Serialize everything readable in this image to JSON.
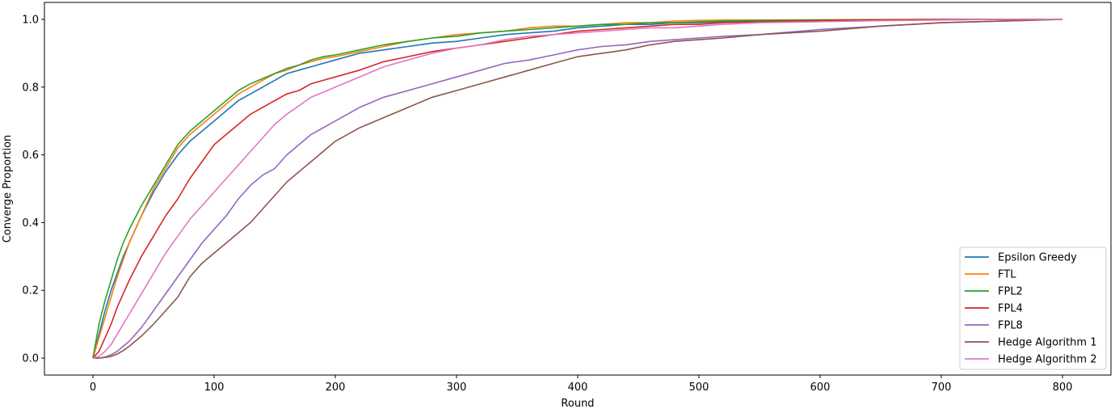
{
  "chart_data": {
    "type": "line",
    "title": "",
    "xlabel": "Round",
    "ylabel": "Converge Proportion",
    "xlim": [
      -40,
      840
    ],
    "ylim": [
      -0.05,
      1.05
    ],
    "xticks": [
      0,
      100,
      200,
      300,
      400,
      500,
      600,
      700,
      800
    ],
    "yticks": [
      0.0,
      0.2,
      0.4,
      0.6,
      0.8,
      1.0
    ],
    "xtick_labels": [
      "0",
      "100",
      "200",
      "300",
      "400",
      "500",
      "600",
      "700",
      "800"
    ],
    "ytick_labels": [
      "0.0",
      "0.2",
      "0.4",
      "0.6",
      "0.8",
      "1.0"
    ],
    "grid": false,
    "legend_position": "bottom-right",
    "series": [
      {
        "name": "Epsilon Greedy",
        "color": "#1f77b4",
        "x": [
          0,
          5,
          10,
          15,
          20,
          25,
          30,
          40,
          50,
          60,
          70,
          80,
          90,
          100,
          110,
          120,
          130,
          140,
          150,
          160,
          170,
          180,
          190,
          200,
          220,
          240,
          260,
          280,
          300,
          320,
          340,
          360,
          380,
          400,
          420,
          440,
          460,
          480,
          500,
          520,
          550,
          600,
          650,
          700,
          750,
          800
        ],
        "y": [
          0.0,
          0.07,
          0.14,
          0.2,
          0.25,
          0.3,
          0.34,
          0.42,
          0.49,
          0.55,
          0.6,
          0.64,
          0.67,
          0.7,
          0.73,
          0.76,
          0.78,
          0.8,
          0.82,
          0.84,
          0.85,
          0.86,
          0.87,
          0.88,
          0.9,
          0.91,
          0.92,
          0.93,
          0.935,
          0.945,
          0.955,
          0.96,
          0.965,
          0.975,
          0.98,
          0.985,
          0.985,
          0.99,
          0.99,
          0.993,
          0.995,
          0.997,
          0.998,
          0.999,
          1.0,
          1.0
        ]
      },
      {
        "name": "FTL",
        "color": "#ff7f0e",
        "x": [
          0,
          5,
          10,
          15,
          20,
          25,
          30,
          40,
          50,
          60,
          70,
          80,
          90,
          100,
          110,
          120,
          130,
          140,
          150,
          160,
          170,
          180,
          190,
          200,
          220,
          240,
          260,
          280,
          300,
          320,
          340,
          360,
          380,
          400,
          420,
          440,
          460,
          480,
          500,
          520,
          550,
          600,
          650,
          700,
          750,
          800
        ],
        "y": [
          0.0,
          0.06,
          0.12,
          0.18,
          0.24,
          0.29,
          0.34,
          0.42,
          0.5,
          0.56,
          0.62,
          0.66,
          0.69,
          0.72,
          0.75,
          0.78,
          0.8,
          0.82,
          0.84,
          0.85,
          0.865,
          0.875,
          0.885,
          0.89,
          0.905,
          0.92,
          0.935,
          0.945,
          0.955,
          0.96,
          0.965,
          0.975,
          0.98,
          0.98,
          0.985,
          0.99,
          0.99,
          0.995,
          0.997,
          0.998,
          0.998,
          0.999,
          1.0,
          1.0,
          1.0,
          1.0
        ]
      },
      {
        "name": "FPL2",
        "color": "#2ca02c",
        "x": [
          0,
          5,
          10,
          15,
          20,
          25,
          30,
          40,
          50,
          60,
          70,
          80,
          90,
          100,
          110,
          120,
          130,
          140,
          150,
          160,
          170,
          180,
          190,
          200,
          220,
          240,
          260,
          280,
          300,
          320,
          340,
          360,
          380,
          400,
          420,
          440,
          460,
          480,
          500,
          520,
          550,
          600,
          650,
          700,
          750,
          800
        ],
        "y": [
          0.0,
          0.1,
          0.17,
          0.23,
          0.29,
          0.34,
          0.38,
          0.45,
          0.51,
          0.57,
          0.63,
          0.67,
          0.7,
          0.73,
          0.76,
          0.79,
          0.81,
          0.825,
          0.84,
          0.855,
          0.865,
          0.88,
          0.89,
          0.895,
          0.91,
          0.925,
          0.935,
          0.945,
          0.95,
          0.96,
          0.965,
          0.97,
          0.975,
          0.98,
          0.985,
          0.985,
          0.99,
          0.99,
          0.993,
          0.995,
          0.997,
          0.998,
          0.999,
          1.0,
          1.0,
          1.0
        ]
      },
      {
        "name": "FPL4",
        "color": "#d62728",
        "x": [
          0,
          5,
          10,
          15,
          20,
          25,
          30,
          40,
          50,
          60,
          70,
          80,
          90,
          100,
          110,
          120,
          130,
          140,
          150,
          160,
          170,
          180,
          190,
          200,
          220,
          240,
          260,
          280,
          300,
          320,
          340,
          360,
          380,
          400,
          420,
          440,
          460,
          480,
          500,
          520,
          550,
          600,
          650,
          700,
          750,
          800
        ],
        "y": [
          0.0,
          0.02,
          0.06,
          0.1,
          0.15,
          0.19,
          0.23,
          0.3,
          0.36,
          0.42,
          0.47,
          0.53,
          0.58,
          0.63,
          0.66,
          0.69,
          0.72,
          0.74,
          0.76,
          0.78,
          0.79,
          0.81,
          0.82,
          0.83,
          0.85,
          0.875,
          0.89,
          0.905,
          0.915,
          0.925,
          0.935,
          0.945,
          0.955,
          0.965,
          0.97,
          0.975,
          0.98,
          0.985,
          0.985,
          0.99,
          0.993,
          0.996,
          0.998,
          1.0,
          1.0,
          1.0
        ]
      },
      {
        "name": "FPL8",
        "color": "#9467bd",
        "x": [
          0,
          5,
          10,
          15,
          20,
          25,
          30,
          40,
          50,
          60,
          70,
          80,
          90,
          100,
          110,
          120,
          130,
          140,
          150,
          160,
          170,
          180,
          190,
          200,
          220,
          240,
          260,
          280,
          300,
          320,
          340,
          360,
          380,
          400,
          420,
          440,
          460,
          480,
          500,
          520,
          550,
          600,
          650,
          700,
          750,
          800
        ],
        "y": [
          0.0,
          0.0,
          0.003,
          0.01,
          0.02,
          0.035,
          0.05,
          0.09,
          0.14,
          0.19,
          0.24,
          0.29,
          0.34,
          0.38,
          0.42,
          0.47,
          0.51,
          0.54,
          0.56,
          0.6,
          0.63,
          0.66,
          0.68,
          0.7,
          0.74,
          0.77,
          0.79,
          0.81,
          0.83,
          0.85,
          0.87,
          0.88,
          0.895,
          0.91,
          0.92,
          0.925,
          0.935,
          0.94,
          0.945,
          0.95,
          0.955,
          0.97,
          0.98,
          0.99,
          0.995,
          1.0
        ]
      },
      {
        "name": "Hedge Algorithm 1",
        "color": "#8c564b",
        "x": [
          0,
          5,
          10,
          15,
          20,
          25,
          30,
          40,
          50,
          60,
          70,
          80,
          90,
          100,
          110,
          120,
          130,
          140,
          150,
          160,
          170,
          180,
          190,
          200,
          220,
          240,
          260,
          280,
          300,
          320,
          340,
          360,
          380,
          400,
          420,
          440,
          460,
          480,
          500,
          520,
          550,
          600,
          650,
          700,
          750,
          800
        ],
        "y": [
          0.0,
          0.0,
          0.002,
          0.005,
          0.012,
          0.022,
          0.035,
          0.065,
          0.1,
          0.14,
          0.18,
          0.24,
          0.28,
          0.31,
          0.34,
          0.37,
          0.4,
          0.44,
          0.48,
          0.52,
          0.55,
          0.58,
          0.61,
          0.64,
          0.68,
          0.71,
          0.74,
          0.77,
          0.79,
          0.81,
          0.83,
          0.85,
          0.87,
          0.89,
          0.9,
          0.91,
          0.925,
          0.935,
          0.94,
          0.945,
          0.955,
          0.965,
          0.98,
          0.99,
          0.995,
          1.0
        ]
      },
      {
        "name": "Hedge Algorithm 2",
        "color": "#e377c2",
        "x": [
          0,
          5,
          10,
          15,
          20,
          25,
          30,
          40,
          50,
          60,
          70,
          80,
          90,
          100,
          110,
          120,
          130,
          140,
          150,
          160,
          170,
          180,
          190,
          200,
          220,
          240,
          260,
          280,
          300,
          320,
          340,
          360,
          380,
          400,
          420,
          440,
          460,
          480,
          500,
          520,
          550,
          600,
          650,
          700,
          750,
          800
        ],
        "y": [
          0.0,
          0.005,
          0.02,
          0.04,
          0.07,
          0.1,
          0.13,
          0.19,
          0.25,
          0.31,
          0.36,
          0.41,
          0.45,
          0.49,
          0.53,
          0.57,
          0.61,
          0.65,
          0.69,
          0.72,
          0.745,
          0.77,
          0.785,
          0.8,
          0.83,
          0.86,
          0.88,
          0.9,
          0.915,
          0.925,
          0.94,
          0.95,
          0.955,
          0.96,
          0.965,
          0.97,
          0.975,
          0.975,
          0.98,
          0.985,
          0.99,
          0.993,
          0.996,
          0.998,
          1.0,
          1.0
        ]
      }
    ]
  }
}
